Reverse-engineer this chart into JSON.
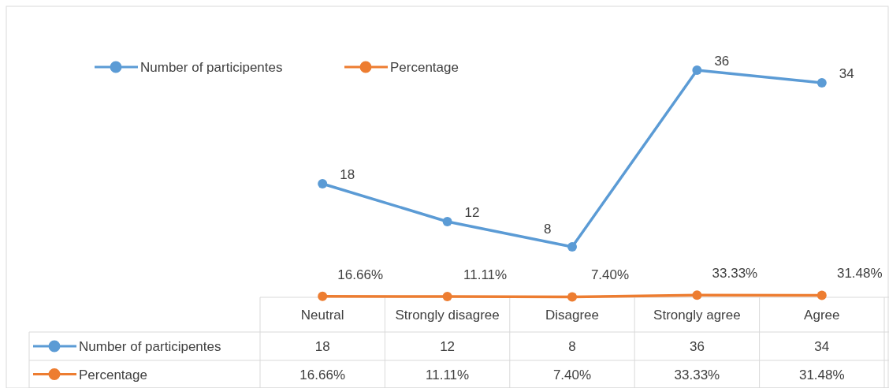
{
  "chart_data": {
    "type": "line",
    "categories": [
      "Neutral",
      "Strongly disagree",
      "Disagree",
      "Strongly agree",
      "Agree"
    ],
    "series": [
      {
        "name": "Number of participentes",
        "color": "#5b9bd5",
        "values": [
          18,
          12,
          8,
          36,
          34
        ],
        "value_labels": [
          "18",
          "12",
          "8",
          "36",
          "34"
        ]
      },
      {
        "name": "Percentage",
        "color": "#ed7d31",
        "values": [
          0.1666,
          0.1111,
          0.074,
          0.3333,
          0.3148
        ],
        "value_labels": [
          "16.66%",
          "11.11%",
          "7.40%",
          "33.33%",
          "31.48%"
        ]
      }
    ],
    "legend": "bottom left",
    "marker": "circle",
    "line_style": "solid",
    "grid": false
  }
}
